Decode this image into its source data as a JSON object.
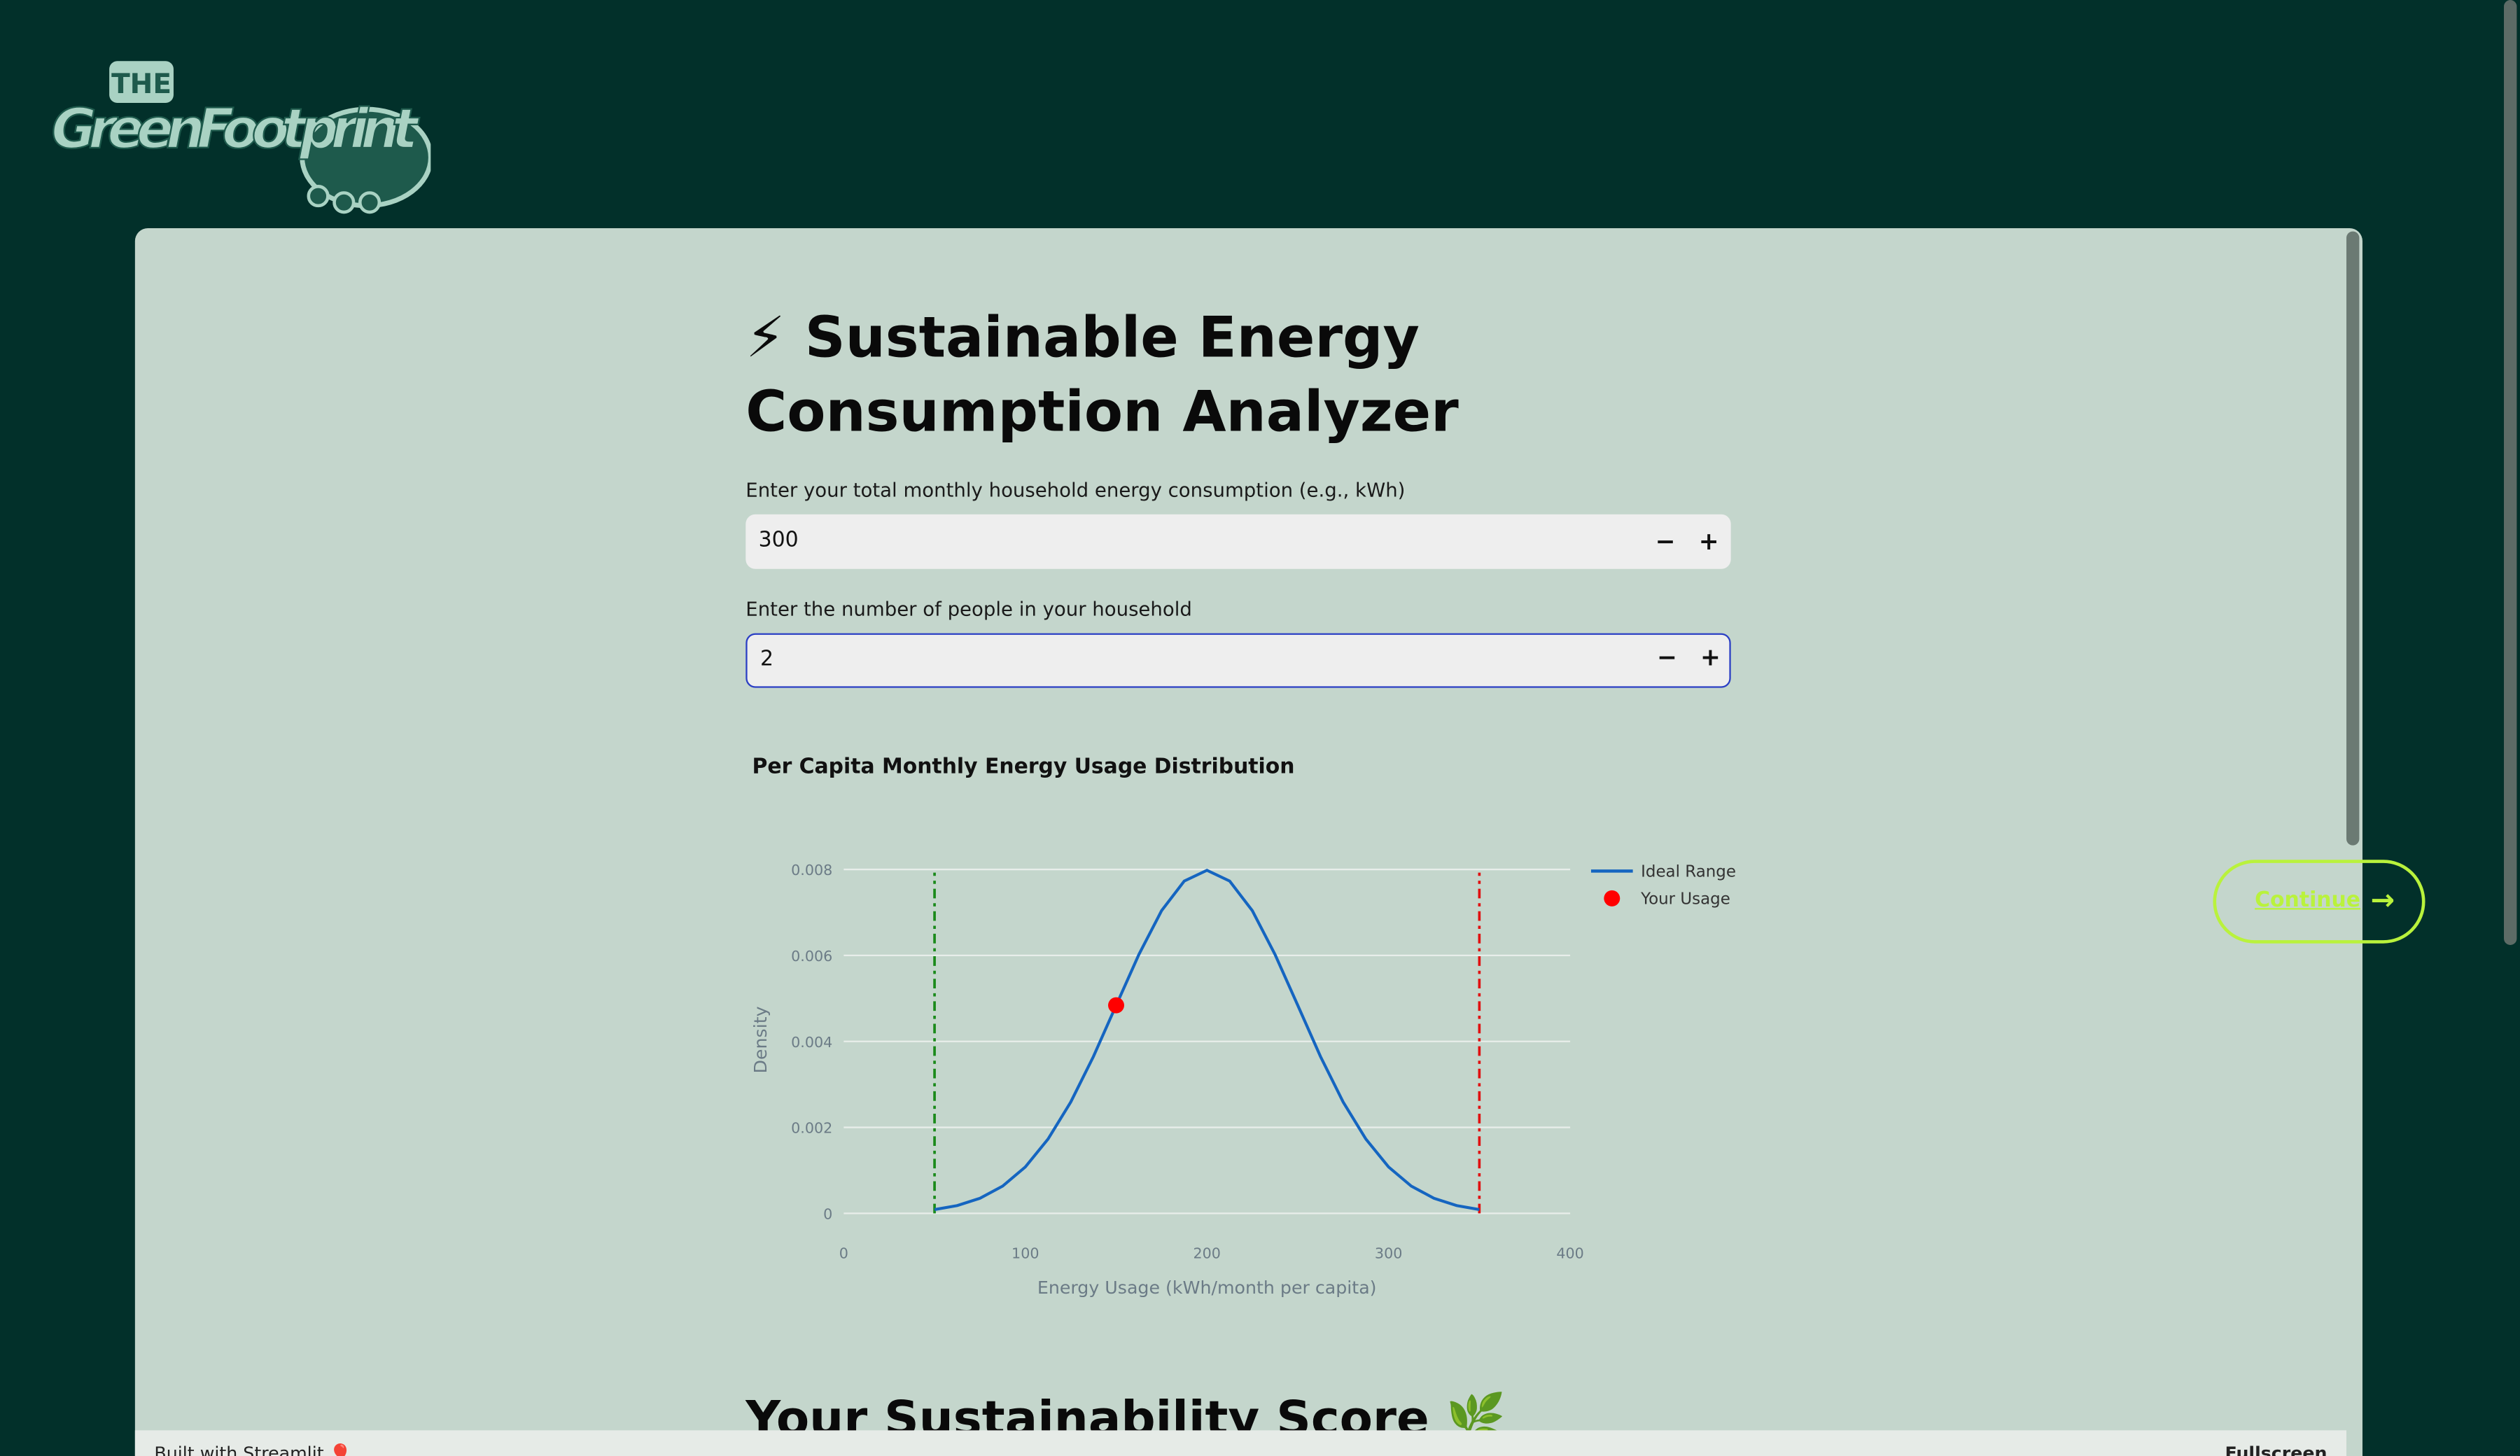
{
  "header": {
    "logo_top": "THE",
    "logo_main": "GreenFootprint"
  },
  "main": {
    "title": "⚡ Sustainable Energy Consumption Analyzer",
    "inputs": [
      {
        "label": "Enter your total monthly household energy consumption (e.g., kWh)",
        "value": "300"
      },
      {
        "label": "Enter the number of people in your household",
        "value": "2"
      }
    ],
    "section_heading": "Your Sustainability Score 🌿"
  },
  "chart_data": {
    "type": "line",
    "title": "Per Capita Monthly Energy Usage Distribution",
    "x_label": "Energy Usage (kWh/month per capita)",
    "y_label": "Density",
    "xlim": [
      0,
      400
    ],
    "xticks": [
      0,
      100,
      200,
      300,
      400
    ],
    "ylim": [
      0,
      0.008
    ],
    "yticks": [
      0,
      0.002,
      0.004,
      0.006,
      0.008
    ],
    "grid": true,
    "legend": "right",
    "series": [
      {
        "name": "Ideal Range",
        "color": "#1565c0",
        "mode": "line",
        "x": [
          50,
          62.5,
          75,
          87.5,
          100,
          112.5,
          125,
          137.5,
          150,
          162.5,
          175,
          187.5,
          200,
          212.5,
          225,
          237.5,
          250,
          262.5,
          275,
          287.5,
          300,
          312.5,
          325,
          337.5,
          350
        ],
        "values": [
          8.86e-05,
          0.000182,
          0.000351,
          0.000635,
          0.00108,
          0.00173,
          0.00259,
          0.00365,
          0.00484,
          0.00602,
          0.00704,
          0.00773,
          0.00798,
          0.00773,
          0.00704,
          0.00602,
          0.00484,
          0.00365,
          0.00259,
          0.00173,
          0.00108,
          0.000635,
          0.000351,
          0.000182,
          8.86e-05
        ]
      },
      {
        "name": "Your Usage",
        "color": "#ff0000",
        "mode": "marker",
        "x": [
          150
        ],
        "values": [
          0.00484
        ]
      }
    ],
    "vlines": [
      {
        "x": 50,
        "color": "#1a8a1a"
      },
      {
        "x": 350,
        "color": "#e01010"
      }
    ]
  },
  "continue_button": "Continue",
  "footer": {
    "left": "Built with Streamlit 🎈",
    "right": "Fullscreen"
  }
}
